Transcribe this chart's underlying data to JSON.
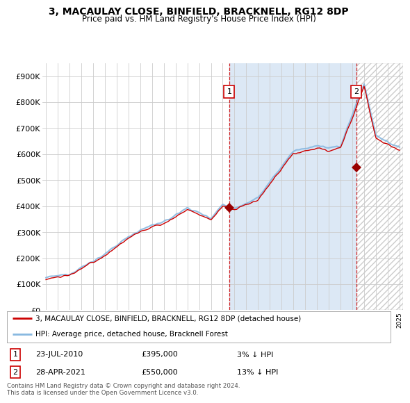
{
  "title": "3, MACAULAY CLOSE, BINFIELD, BRACKNELL, RG12 8DP",
  "subtitle": "Price paid vs. HM Land Registry's House Price Index (HPI)",
  "ylim": [
    0,
    950000
  ],
  "yticks": [
    0,
    100000,
    200000,
    300000,
    400000,
    500000,
    600000,
    700000,
    800000,
    900000
  ],
  "ytick_labels": [
    "£0",
    "£100K",
    "£200K",
    "£300K",
    "£400K",
    "£500K",
    "£600K",
    "£700K",
    "£800K",
    "£900K"
  ],
  "xlim_left": 1994.7,
  "xlim_right": 2025.3,
  "sale1_year": 2010.55,
  "sale1_price": 395000,
  "sale1_label": "23-JUL-2010",
  "sale1_amount": "£395,000",
  "sale1_note": "3% ↓ HPI",
  "sale2_year": 2021.33,
  "sale2_price": 550000,
  "sale2_label": "28-APR-2021",
  "sale2_amount": "£550,000",
  "sale2_note": "13% ↓ HPI",
  "line1_color": "#cc0000",
  "line2_color": "#88b8e0",
  "marker_color": "#990000",
  "vline_color": "#cc0000",
  "plot_bg": "#ffffff",
  "fig_bg": "#ffffff",
  "grid_color": "#cccccc",
  "shade_color": "#dce8f5",
  "hatch_color": "#cccccc",
  "legend1_label": "3, MACAULAY CLOSE, BINFIELD, BRACKNELL, RG12 8DP (detached house)",
  "legend2_label": "HPI: Average price, detached house, Bracknell Forest",
  "footnote": "Contains HM Land Registry data © Crown copyright and database right 2024.\nThis data is licensed under the Open Government Licence v3.0.",
  "title_fontsize": 10,
  "subtitle_fontsize": 8.5
}
